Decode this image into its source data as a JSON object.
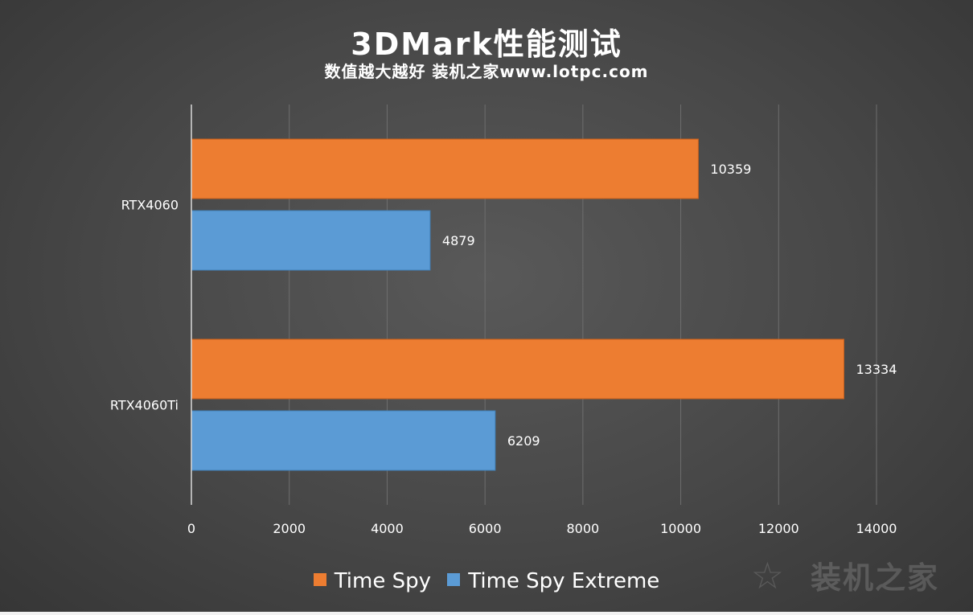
{
  "title": "3DMark性能测试",
  "subtitle": "数值越大越好 装机之家www.lotpc.com",
  "watermark": "装机之家",
  "chart_data": {
    "type": "bar",
    "orientation": "horizontal",
    "title": "3DMark性能测试",
    "subtitle": "数值越大越好 装机之家www.lotpc.com",
    "categories": [
      "RTX4060",
      "RTX4060Ti"
    ],
    "series": [
      {
        "name": "Time Spy",
        "values": [
          10359,
          13334
        ],
        "color": "#ed7d31"
      },
      {
        "name": "Time Spy Extreme",
        "values": [
          4879,
          6209
        ],
        "color": "#5b9bd5"
      }
    ],
    "xlim": [
      0,
      14000
    ],
    "xticks": [
      0,
      2000,
      4000,
      6000,
      8000,
      10000,
      12000,
      14000
    ],
    "tick_labels": [
      "0",
      "2000",
      "4000",
      "6000",
      "8000",
      "10000",
      "12000",
      "14000"
    ],
    "data_labels": [
      "10359",
      "4879",
      "13334",
      "6209"
    ],
    "grid": true,
    "legend": "bottom"
  }
}
